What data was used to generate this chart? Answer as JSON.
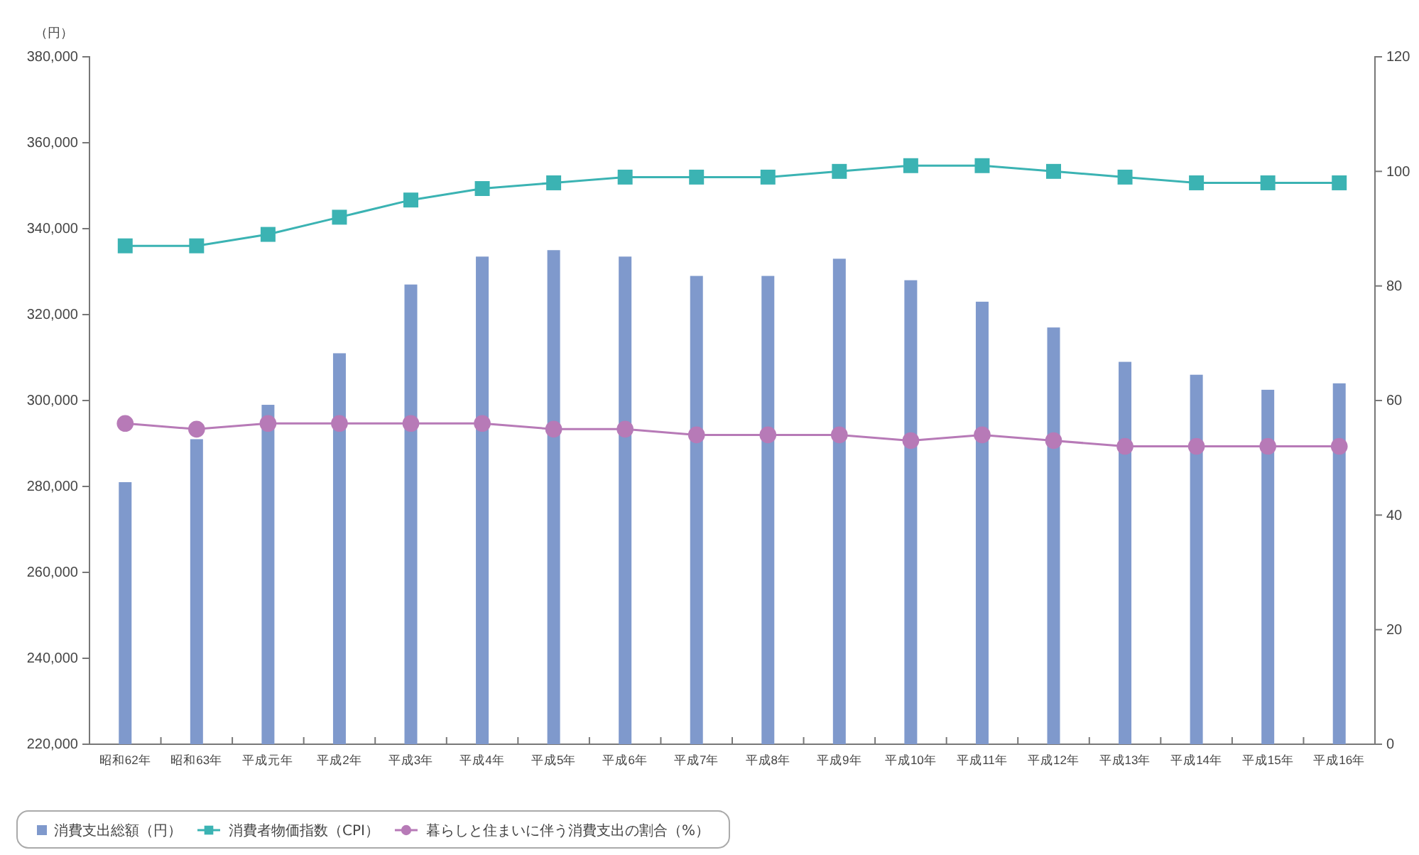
{
  "chart_data": {
    "type": "bar",
    "ylabel": "（円）",
    "categories": [
      "昭和62年",
      "昭和63年",
      "平成元年",
      "平成2年",
      "平成3年",
      "平成4年",
      "平成5年",
      "平成6年",
      "平成7年",
      "平成8年",
      "平成9年",
      "平成10年",
      "平成11年",
      "平成12年",
      "平成13年",
      "平成14年",
      "平成15年",
      "平成16年"
    ],
    "series": [
      {
        "name": "消費支出総額（円）",
        "color": "#7f99cc",
        "values": [
          281000,
          291000,
          299000,
          311000,
          327000,
          333500,
          335000,
          333500,
          329000,
          329000,
          333000,
          328000,
          323000,
          317000,
          309000,
          306000,
          302500,
          304000
        ]
      },
      {
        "name": "消費者物価指数（CPI）",
        "type": "line",
        "axis": "y2",
        "marker": "square",
        "color": "#3bb3b3",
        "values": [
          87,
          87,
          89,
          92,
          95,
          97,
          98,
          99,
          99,
          99,
          100,
          101,
          101,
          100,
          99,
          98,
          98,
          98
        ]
      },
      {
        "name": "暮らしと住まいに伴う消費支出の割合（%）",
        "type": "line",
        "axis": "y2",
        "marker": "circle",
        "color": "#b77ab7",
        "values": [
          56,
          55,
          56,
          56,
          56,
          56,
          55,
          55,
          54,
          54,
          54,
          53,
          54,
          53,
          52,
          52,
          52,
          52
        ]
      }
    ],
    "ylim": [
      220000,
      380000
    ],
    "yticks": [
      {
        "value": 220000,
        "label": "220,000"
      },
      {
        "value": 240000,
        "label": "240,000"
      },
      {
        "value": 260000,
        "label": "260,000"
      },
      {
        "value": 280000,
        "label": "280,000"
      },
      {
        "value": 300000,
        "label": "300,000"
      },
      {
        "value": 320000,
        "label": "320,000"
      },
      {
        "value": 340000,
        "label": "340,000"
      },
      {
        "value": 360000,
        "label": "360,000"
      },
      {
        "value": 380000,
        "label": "380,000"
      }
    ],
    "y2lim": [
      0,
      120
    ],
    "y2ticks": [
      0,
      20,
      40,
      60,
      80,
      100,
      120
    ],
    "grid": false,
    "legend": "bottom left"
  }
}
